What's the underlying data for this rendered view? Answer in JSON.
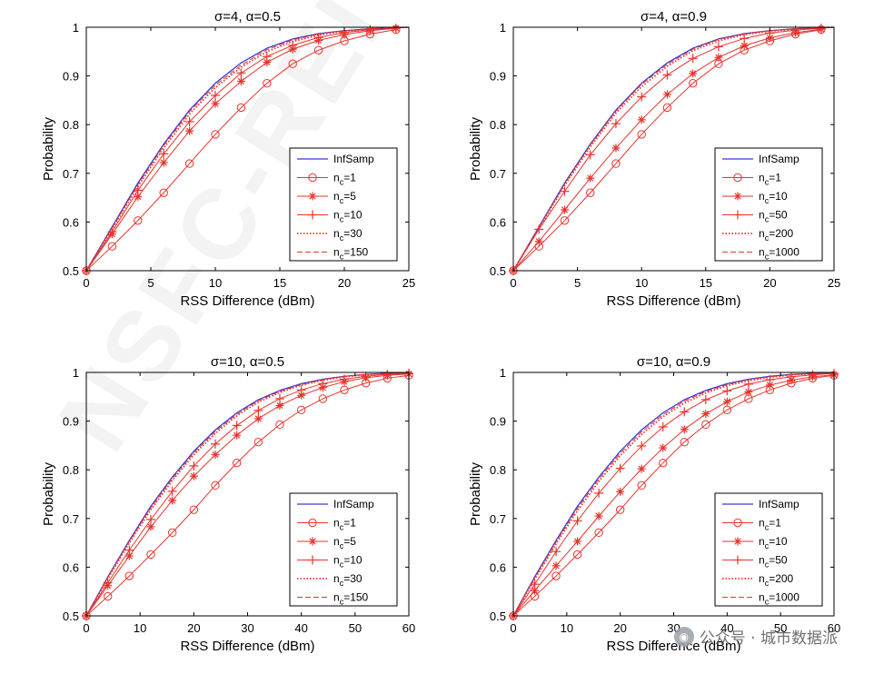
{
  "watermark": {
    "overlay_text": "NSFC-REI",
    "account_text": "公众号 · 城市数据派",
    "icon": "wechat-icon"
  },
  "colors": {
    "infsamp": "#3b3bd1",
    "series": "#e8332c"
  },
  "chart_data": [
    {
      "type": "line",
      "title": "σ=4, α=0.5",
      "xlabel": "RSS Difference (dBm)",
      "ylabel": "Probability",
      "xlim": [
        0,
        25
      ],
      "ylim": [
        0.5,
        1
      ],
      "xticks": [
        0,
        5,
        10,
        15,
        20,
        25
      ],
      "yticks": [
        0.5,
        0.6,
        0.7,
        0.8,
        0.9,
        1
      ],
      "legend_position": "lower-right",
      "series": [
        {
          "name": "InfSamp",
          "style": "solid-blue",
          "x": [
            0,
            2,
            4,
            6,
            8,
            10,
            12,
            14,
            16,
            18,
            20,
            22,
            24,
            25
          ],
          "values": [
            0.5,
            0.59,
            0.68,
            0.76,
            0.83,
            0.885,
            0.927,
            0.957,
            0.976,
            0.987,
            0.993,
            0.997,
            0.999,
            1.0
          ]
        },
        {
          "name": "n_c=1",
          "style": "circle",
          "x": [
            0,
            2,
            4,
            6,
            8,
            10,
            12,
            14,
            16,
            18,
            20,
            22,
            24
          ],
          "values": [
            0.5,
            0.55,
            0.603,
            0.66,
            0.72,
            0.78,
            0.835,
            0.885,
            0.925,
            0.953,
            0.972,
            0.986,
            0.995
          ]
        },
        {
          "name": "n_c=5",
          "style": "star",
          "x": [
            0,
            2,
            4,
            6,
            8,
            10,
            12,
            14,
            16,
            18,
            20,
            22,
            24
          ],
          "values": [
            0.5,
            0.575,
            0.652,
            0.722,
            0.787,
            0.843,
            0.889,
            0.928,
            0.955,
            0.973,
            0.985,
            0.993,
            0.998
          ]
        },
        {
          "name": "n_c=10",
          "style": "plus",
          "x": [
            0,
            2,
            4,
            6,
            8,
            10,
            12,
            14,
            16,
            18,
            20,
            22,
            24
          ],
          "values": [
            0.5,
            0.58,
            0.665,
            0.74,
            0.806,
            0.86,
            0.906,
            0.94,
            0.963,
            0.979,
            0.989,
            0.995,
            0.998
          ]
        },
        {
          "name": "n_c=30",
          "style": "dotted",
          "x": [
            0,
            2,
            4,
            6,
            8,
            10,
            12,
            14,
            16,
            18,
            20,
            22,
            24,
            25
          ],
          "values": [
            0.5,
            0.585,
            0.673,
            0.752,
            0.822,
            0.876,
            0.918,
            0.95,
            0.971,
            0.984,
            0.992,
            0.996,
            0.999,
            1.0
          ]
        },
        {
          "name": "n_c=150",
          "style": "dashed",
          "x": [
            0,
            2,
            4,
            6,
            8,
            10,
            12,
            14,
            16,
            18,
            20,
            22,
            24,
            25
          ],
          "values": [
            0.5,
            0.588,
            0.677,
            0.757,
            0.827,
            0.881,
            0.922,
            0.954,
            0.974,
            0.986,
            0.993,
            0.997,
            0.999,
            1.0
          ]
        }
      ]
    },
    {
      "type": "line",
      "title": "σ=4, α=0.9",
      "xlabel": "RSS Difference (dBm)",
      "ylabel": "Probability",
      "xlim": [
        0,
        25
      ],
      "ylim": [
        0.5,
        1
      ],
      "xticks": [
        0,
        5,
        10,
        15,
        20,
        25
      ],
      "yticks": [
        0.5,
        0.6,
        0.7,
        0.8,
        0.9,
        1
      ],
      "legend_position": "lower-right",
      "series": [
        {
          "name": "InfSamp",
          "style": "solid-blue",
          "x": [
            0,
            2,
            4,
            6,
            8,
            10,
            12,
            14,
            16,
            18,
            20,
            22,
            24,
            25
          ],
          "values": [
            0.5,
            0.59,
            0.68,
            0.76,
            0.83,
            0.885,
            0.927,
            0.957,
            0.976,
            0.987,
            0.993,
            0.997,
            0.999,
            1.0
          ]
        },
        {
          "name": "n_c=1",
          "style": "circle",
          "x": [
            0,
            2,
            4,
            6,
            8,
            10,
            12,
            14,
            16,
            18,
            20,
            22,
            24
          ],
          "values": [
            0.5,
            0.55,
            0.603,
            0.66,
            0.72,
            0.78,
            0.835,
            0.885,
            0.925,
            0.953,
            0.972,
            0.986,
            0.995
          ]
        },
        {
          "name": "n_c=10",
          "style": "star",
          "x": [
            0,
            2,
            4,
            6,
            8,
            10,
            12,
            14,
            16,
            18,
            20,
            22,
            24
          ],
          "values": [
            0.5,
            0.56,
            0.625,
            0.69,
            0.752,
            0.81,
            0.862,
            0.905,
            0.938,
            0.962,
            0.978,
            0.989,
            0.996
          ]
        },
        {
          "name": "n_c=50",
          "style": "plus",
          "x": [
            0,
            2,
            4,
            6,
            8,
            10,
            12,
            14,
            16,
            18,
            20,
            22,
            24
          ],
          "values": [
            0.5,
            0.585,
            0.663,
            0.738,
            0.802,
            0.857,
            0.902,
            0.936,
            0.96,
            0.977,
            0.988,
            0.994,
            0.998
          ]
        },
        {
          "name": "n_c=200",
          "style": "dotted",
          "x": [
            0,
            2,
            4,
            6,
            8,
            10,
            12,
            14,
            16,
            18,
            20,
            22,
            24,
            25
          ],
          "values": [
            0.5,
            0.587,
            0.675,
            0.754,
            0.824,
            0.878,
            0.92,
            0.952,
            0.972,
            0.985,
            0.992,
            0.996,
            0.999,
            1.0
          ]
        },
        {
          "name": "n_c=1000",
          "style": "dashed",
          "x": [
            0,
            2,
            4,
            6,
            8,
            10,
            12,
            14,
            16,
            18,
            20,
            22,
            24,
            25
          ],
          "values": [
            0.5,
            0.589,
            0.678,
            0.758,
            0.828,
            0.883,
            0.924,
            0.955,
            0.975,
            0.986,
            0.993,
            0.997,
            0.999,
            1.0
          ]
        }
      ]
    },
    {
      "type": "line",
      "title": "σ=10, α=0.5",
      "xlabel": "RSS Difference (dBm)",
      "ylabel": "Probability",
      "xlim": [
        0,
        60
      ],
      "ylim": [
        0.5,
        1
      ],
      "xticks": [
        0,
        10,
        20,
        30,
        40,
        50,
        60
      ],
      "yticks": [
        0.5,
        0.6,
        0.7,
        0.8,
        0.9,
        1
      ],
      "legend_position": "lower-right",
      "series": [
        {
          "name": "InfSamp",
          "style": "solid-blue",
          "x": [
            0,
            4,
            8,
            12,
            16,
            20,
            24,
            28,
            32,
            36,
            40,
            44,
            48,
            52,
            56,
            60
          ],
          "values": [
            0.5,
            0.58,
            0.655,
            0.725,
            0.785,
            0.838,
            0.882,
            0.917,
            0.944,
            0.963,
            0.977,
            0.986,
            0.992,
            0.996,
            0.998,
            0.999
          ]
        },
        {
          "name": "n_c=1",
          "style": "circle",
          "x": [
            0,
            4,
            8,
            12,
            16,
            20,
            24,
            28,
            32,
            36,
            40,
            44,
            48,
            52,
            56,
            60
          ],
          "values": [
            0.5,
            0.54,
            0.582,
            0.626,
            0.671,
            0.718,
            0.768,
            0.814,
            0.857,
            0.893,
            0.923,
            0.946,
            0.964,
            0.978,
            0.988,
            0.994
          ]
        },
        {
          "name": "n_c=5",
          "style": "star",
          "x": [
            0,
            4,
            8,
            12,
            16,
            20,
            24,
            28,
            32,
            36,
            40,
            44,
            48,
            52,
            56,
            60
          ],
          "values": [
            0.5,
            0.562,
            0.623,
            0.683,
            0.737,
            0.787,
            0.831,
            0.871,
            0.905,
            0.932,
            0.953,
            0.969,
            0.981,
            0.989,
            0.994,
            0.997
          ]
        },
        {
          "name": "n_c=10",
          "style": "plus",
          "x": [
            0,
            4,
            8,
            12,
            16,
            20,
            24,
            28,
            32,
            36,
            40,
            44,
            48,
            52,
            56,
            60
          ],
          "values": [
            0.5,
            0.568,
            0.635,
            0.698,
            0.756,
            0.808,
            0.853,
            0.891,
            0.922,
            0.946,
            0.964,
            0.977,
            0.986,
            0.992,
            0.996,
            0.998
          ]
        },
        {
          "name": "n_c=30",
          "style": "dotted",
          "x": [
            0,
            4,
            8,
            12,
            16,
            20,
            24,
            28,
            32,
            36,
            40,
            44,
            48,
            52,
            56,
            60
          ],
          "values": [
            0.5,
            0.576,
            0.65,
            0.718,
            0.778,
            0.831,
            0.875,
            0.911,
            0.939,
            0.959,
            0.974,
            0.984,
            0.991,
            0.995,
            0.998,
            0.999
          ]
        },
        {
          "name": "n_c=150",
          "style": "dashed",
          "x": [
            0,
            4,
            8,
            12,
            16,
            20,
            24,
            28,
            32,
            36,
            40,
            44,
            48,
            52,
            56,
            60
          ],
          "values": [
            0.5,
            0.579,
            0.653,
            0.722,
            0.782,
            0.835,
            0.879,
            0.914,
            0.942,
            0.961,
            0.975,
            0.985,
            0.992,
            0.996,
            0.998,
            0.999
          ]
        }
      ]
    },
    {
      "type": "line",
      "title": "σ=10, α=0.9",
      "xlabel": "RSS Difference (dBm)",
      "ylabel": "Probability",
      "xlim": [
        0,
        60
      ],
      "ylim": [
        0.5,
        1
      ],
      "xticks": [
        0,
        10,
        20,
        30,
        40,
        50,
        60
      ],
      "yticks": [
        0.5,
        0.6,
        0.7,
        0.8,
        0.9,
        1
      ],
      "legend_position": "lower-right",
      "series": [
        {
          "name": "InfSamp",
          "style": "solid-blue",
          "x": [
            0,
            4,
            8,
            12,
            16,
            20,
            24,
            28,
            32,
            36,
            40,
            44,
            48,
            52,
            56,
            60
          ],
          "values": [
            0.5,
            0.58,
            0.655,
            0.725,
            0.785,
            0.838,
            0.882,
            0.917,
            0.944,
            0.963,
            0.977,
            0.986,
            0.992,
            0.996,
            0.998,
            0.999
          ]
        },
        {
          "name": "n_c=1",
          "style": "circle",
          "x": [
            0,
            4,
            8,
            12,
            16,
            20,
            24,
            28,
            32,
            36,
            40,
            44,
            48,
            52,
            56,
            60
          ],
          "values": [
            0.5,
            0.54,
            0.582,
            0.626,
            0.671,
            0.718,
            0.768,
            0.814,
            0.857,
            0.893,
            0.923,
            0.946,
            0.964,
            0.978,
            0.988,
            0.994
          ]
        },
        {
          "name": "n_c=10",
          "style": "star",
          "x": [
            0,
            4,
            8,
            12,
            16,
            20,
            24,
            28,
            32,
            36,
            40,
            44,
            48,
            52,
            56,
            60
          ],
          "values": [
            0.5,
            0.552,
            0.603,
            0.653,
            0.705,
            0.755,
            0.802,
            0.845,
            0.883,
            0.915,
            0.94,
            0.96,
            0.974,
            0.984,
            0.991,
            0.995
          ]
        },
        {
          "name": "n_c=50",
          "style": "plus",
          "x": [
            0,
            4,
            8,
            12,
            16,
            20,
            24,
            28,
            32,
            36,
            40,
            44,
            48,
            52,
            56,
            60
          ],
          "values": [
            0.5,
            0.565,
            0.632,
            0.695,
            0.752,
            0.803,
            0.849,
            0.888,
            0.919,
            0.944,
            0.962,
            0.976,
            0.985,
            0.991,
            0.995,
            0.998
          ]
        },
        {
          "name": "n_c=200",
          "style": "dotted",
          "x": [
            0,
            4,
            8,
            12,
            16,
            20,
            24,
            28,
            32,
            36,
            40,
            44,
            48,
            52,
            56,
            60
          ],
          "values": [
            0.5,
            0.575,
            0.648,
            0.716,
            0.776,
            0.829,
            0.873,
            0.909,
            0.937,
            0.958,
            0.973,
            0.983,
            0.99,
            0.995,
            0.997,
            0.999
          ]
        },
        {
          "name": "n_c=1000",
          "style": "dashed",
          "x": [
            0,
            4,
            8,
            12,
            16,
            20,
            24,
            28,
            32,
            36,
            40,
            44,
            48,
            52,
            56,
            60
          ],
          "values": [
            0.5,
            0.578,
            0.652,
            0.721,
            0.781,
            0.834,
            0.878,
            0.913,
            0.941,
            0.961,
            0.975,
            0.985,
            0.991,
            0.995,
            0.998,
            0.999
          ]
        }
      ]
    }
  ]
}
